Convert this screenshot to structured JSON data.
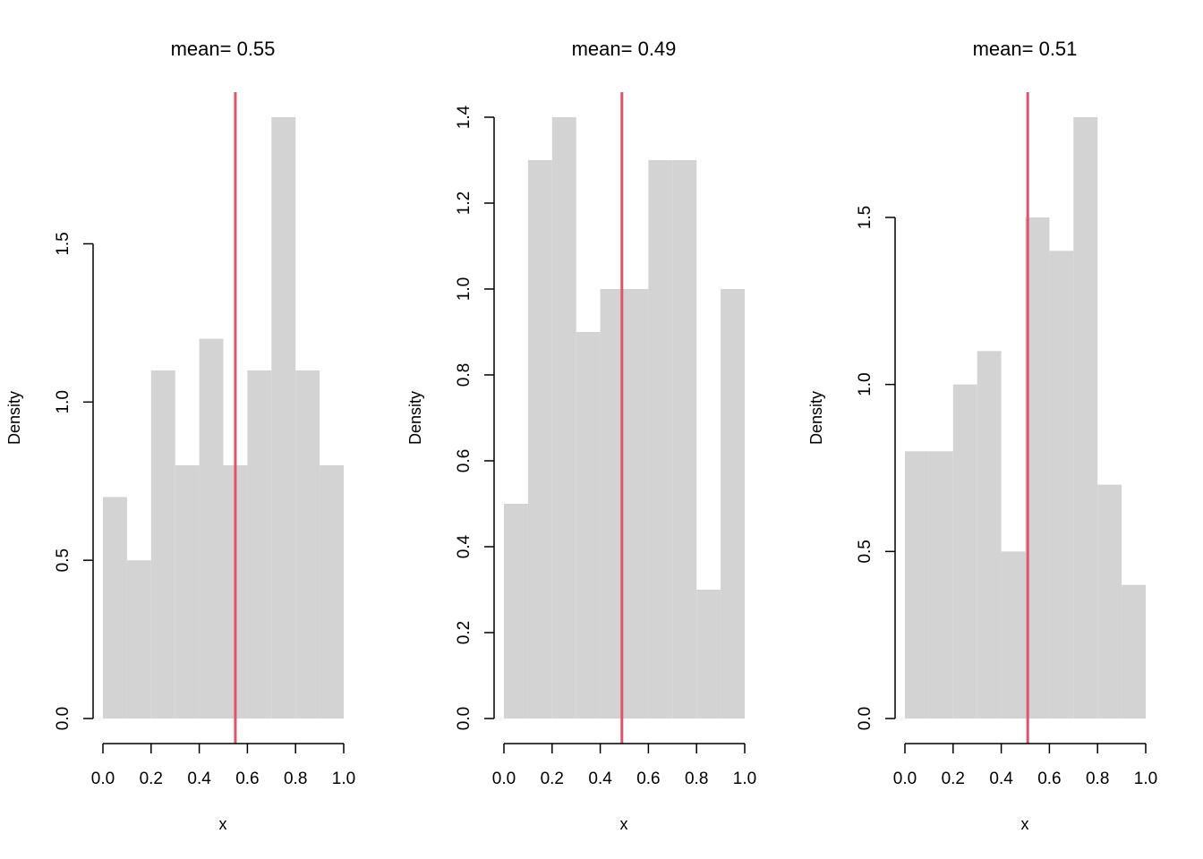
{
  "chart_data": [
    {
      "type": "bar",
      "title": "mean= 0.55",
      "xlabel": "x",
      "ylabel": "Density",
      "bin_edges": [
        0.0,
        0.1,
        0.2,
        0.3,
        0.4,
        0.5,
        0.6,
        0.7,
        0.8,
        0.9,
        1.0
      ],
      "values": [
        0.7,
        0.5,
        1.1,
        0.8,
        1.2,
        0.8,
        1.1,
        1.9,
        1.1,
        0.8
      ],
      "mean": 0.55,
      "xticks": [
        "0.0",
        "0.2",
        "0.4",
        "0.6",
        "0.8",
        "1.0"
      ],
      "yticks": [
        "0.0",
        "0.5",
        "1.0",
        "1.5"
      ],
      "xlim": [
        0,
        1
      ],
      "ylim": [
        0,
        1.9
      ]
    },
    {
      "type": "bar",
      "title": "mean= 0.49",
      "xlabel": "x",
      "ylabel": "Density",
      "bin_edges": [
        0.0,
        0.1,
        0.2,
        0.3,
        0.4,
        0.5,
        0.6,
        0.7,
        0.8,
        0.9,
        1.0
      ],
      "values": [
        0.5,
        1.3,
        1.4,
        0.9,
        1.0,
        1.0,
        1.3,
        1.3,
        0.3,
        1.0
      ],
      "mean": 0.49,
      "xticks": [
        "0.0",
        "0.2",
        "0.4",
        "0.6",
        "0.8",
        "1.0"
      ],
      "yticks": [
        "0.0",
        "0.2",
        "0.4",
        "0.6",
        "0.8",
        "1.0",
        "1.2",
        "1.4"
      ],
      "xlim": [
        0,
        1
      ],
      "ylim": [
        0,
        1.4
      ]
    },
    {
      "type": "bar",
      "title": "mean= 0.51",
      "xlabel": "x",
      "ylabel": "Density",
      "bin_edges": [
        0.0,
        0.1,
        0.2,
        0.3,
        0.4,
        0.5,
        0.6,
        0.7,
        0.8,
        0.9,
        1.0
      ],
      "values": [
        0.8,
        0.8,
        1.0,
        1.1,
        0.5,
        1.5,
        1.4,
        1.8,
        0.7,
        0.4
      ],
      "mean": 0.51,
      "xticks": [
        "0.0",
        "0.2",
        "0.4",
        "0.6",
        "0.8",
        "1.0"
      ],
      "yticks": [
        "0.0",
        "0.5",
        "1.0",
        "1.5"
      ],
      "xlim": [
        0,
        1
      ],
      "ylim": [
        0,
        1.8
      ]
    }
  ],
  "colors": {
    "bar": "#D3D3D3",
    "mean_line": "#DF536B",
    "axis": "#000000"
  }
}
